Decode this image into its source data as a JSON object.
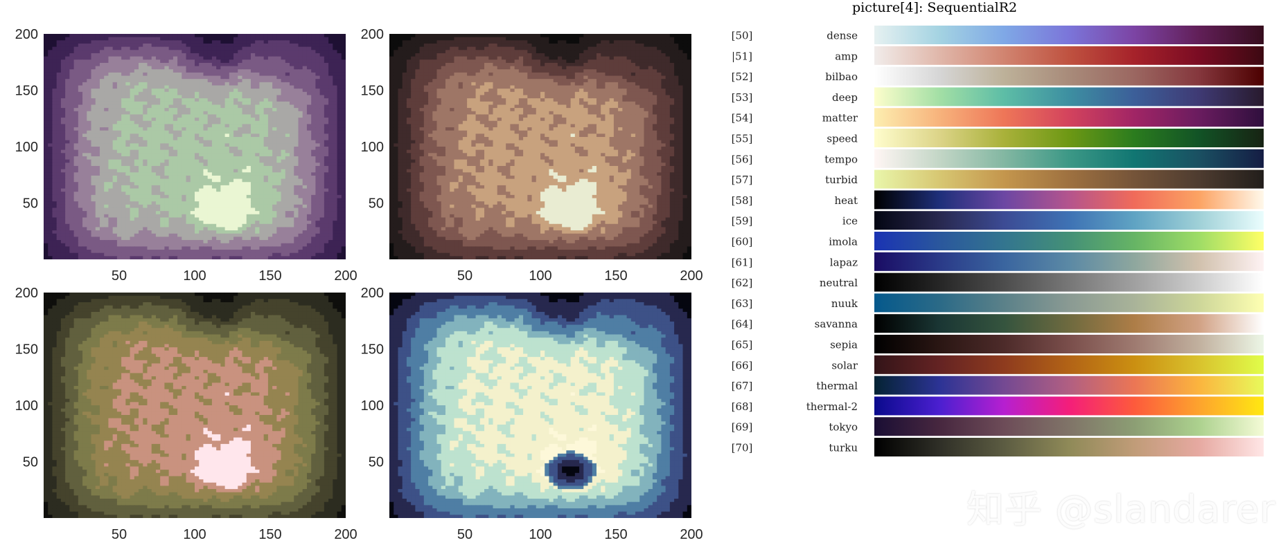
{
  "title": "picture[4]:  SequentialR2",
  "watermark": "知乎 @slandarer",
  "chart_data": [
    {
      "type": "heatmap",
      "colormap": "dense (reversed)",
      "x_ticks": [
        50,
        100,
        150,
        200
      ],
      "y_ticks": [
        50,
        100,
        150,
        200
      ],
      "xlim": [
        0,
        200
      ],
      "ylim": [
        0,
        200
      ]
    },
    {
      "type": "heatmap",
      "colormap": "amp",
      "x_ticks": [
        50,
        100,
        150,
        200
      ],
      "y_ticks": [
        50,
        100,
        150,
        200
      ],
      "xlim": [
        0,
        200
      ],
      "ylim": [
        0,
        200
      ]
    },
    {
      "type": "heatmap",
      "colormap": "turbid",
      "x_ticks": [
        50,
        100,
        150,
        200
      ],
      "y_ticks": [
        50,
        100,
        150,
        200
      ],
      "xlim": [
        0,
        200
      ],
      "ylim": [
        0,
        200
      ]
    },
    {
      "type": "heatmap",
      "colormap": "ice",
      "x_ticks": [
        50,
        100,
        150,
        200
      ],
      "y_ticks": [
        50,
        100,
        150,
        200
      ],
      "xlim": [
        0,
        200
      ],
      "ylim": [
        0,
        200
      ]
    }
  ],
  "colormaps": [
    {
      "index": "[50]",
      "name": "dense",
      "colors": [
        "#e6f1f1",
        "#a4d3e2",
        "#7fa8e6",
        "#7b75d9",
        "#7c44a4",
        "#611f58",
        "#360d1d"
      ]
    },
    {
      "index": "|51]",
      "name": "amp",
      "colors": [
        "#f1ecea",
        "#e0b7aa",
        "#d18470",
        "#bf5240",
        "#a6222a",
        "#7a0c23",
        "#3c0912"
      ]
    },
    {
      "index": "[52]",
      "name": "bilbao",
      "colors": [
        "#ffffff",
        "#d6d6d6",
        "#bdb199",
        "#a88b7a",
        "#9b6761",
        "#85373d",
        "#4c0000"
      ]
    },
    {
      "index": "[53]",
      "name": "deep",
      "colors": [
        "#fdfecc",
        "#a3dfa5",
        "#5dbda6",
        "#3d8fa1",
        "#3c5f99",
        "#3f3a74",
        "#281a2d"
      ]
    },
    {
      "index": "[54]",
      "name": "matter",
      "colors": [
        "#fdeeb0",
        "#f7b37c",
        "#ee7658",
        "#d3435d",
        "#a12565",
        "#6a1c5f",
        "#2f0f3d"
      ]
    },
    {
      "index": "[55]",
      "name": "speed",
      "colors": [
        "#fffdcd",
        "#dcd488",
        "#a9b13a",
        "#6d9814",
        "#2b7c1e",
        "#125326",
        "#172313"
      ]
    },
    {
      "index": "[56]",
      "name": "tempo",
      "colors": [
        "#fff6f4",
        "#c3d6c6",
        "#83b7a2",
        "#3c9886",
        "#117672",
        "#1a5062",
        "#151d44"
      ]
    },
    {
      "index": "[57]",
      "name": "turbid",
      "colors": [
        "#e9f6ab",
        "#d7c772",
        "#c4964d",
        "#9e7140",
        "#755439",
        "#4e3c30",
        "#221e1b"
      ]
    },
    {
      "index": "[58]",
      "name": "heat",
      "colors": [
        "#000000",
        "#1e2f7a",
        "#6c47a3",
        "#b4548d",
        "#f06b5a",
        "#fca363",
        "#fff8ea"
      ]
    },
    {
      "index": "[59]",
      "name": "ice",
      "colors": [
        "#040613",
        "#28284f",
        "#3c4b94",
        "#3e72b4",
        "#5fa3c3",
        "#9fd0d7",
        "#eafdfd"
      ]
    },
    {
      "index": "[60]",
      "name": "imola",
      "colors": [
        "#1a33b3",
        "#2a579d",
        "#33758f",
        "#449077",
        "#66b465",
        "#9edc66",
        "#ffff66"
      ]
    },
    {
      "index": "[61]",
      "name": "lapaz",
      "colors": [
        "#1a0c64",
        "#2a3a88",
        "#3a659f",
        "#5b89a5",
        "#8ea79e",
        "#d1c1ad",
        "#fef2f3"
      ]
    },
    {
      "index": "[62]",
      "name": "neutral",
      "colors": [
        "#000000",
        "#262626",
        "#4d4d4d",
        "#777777",
        "#a0a0a0",
        "#cccccc",
        "#ffffff"
      ]
    },
    {
      "index": "[63]",
      "name": "nuuk",
      "colors": [
        "#05598c",
        "#2b6a87",
        "#5b8189",
        "#8a9a93",
        "#a9b399",
        "#cdd699",
        "#feffb2"
      ]
    },
    {
      "index": "[64]",
      "name": "savanna",
      "colors": [
        "#000000",
        "#1a3634",
        "#35543e",
        "#6e6a3f",
        "#ad7d47",
        "#d1a184",
        "#ffffff"
      ]
    },
    {
      "index": "[65]",
      "name": "sepia",
      "colors": [
        "#000000",
        "#2a1613",
        "#4d2b2a",
        "#7a4e4b",
        "#9e7a70",
        "#c1b09e",
        "#ecf6e6"
      ]
    },
    {
      "index": "[66]",
      "name": "solar",
      "colors": [
        "#331418",
        "#642323",
        "#8e3b1e",
        "#b26316",
        "#cb8f11",
        "#d9c22d",
        "#e0fd4a"
      ]
    },
    {
      "index": "[67]",
      "name": "thermal",
      "colors": [
        "#042333",
        "#2c3395",
        "#744992",
        "#b15f82",
        "#eb7655",
        "#fbb43e",
        "#e8fa5b"
      ]
    },
    {
      "index": "[68]",
      "name": "thermal-2",
      "colors": [
        "#0a0a8c",
        "#4b1fd0",
        "#b61fd0",
        "#f41e7a",
        "#fd5a3c",
        "#fda32e",
        "#ffe812"
      ]
    },
    {
      "index": "[69]",
      "name": "tokyo",
      "colors": [
        "#1a0e34",
        "#47273f",
        "#6d4c58",
        "#807468",
        "#8c9e74",
        "#acd18e",
        "#f4fbd6"
      ]
    },
    {
      "index": "[70]",
      "name": "turku",
      "colors": [
        "#000000",
        "#2f2f27",
        "#5c5c42",
        "#8f8a58",
        "#c09c78",
        "#e6a9a1",
        "#ffe6e6"
      ]
    }
  ]
}
